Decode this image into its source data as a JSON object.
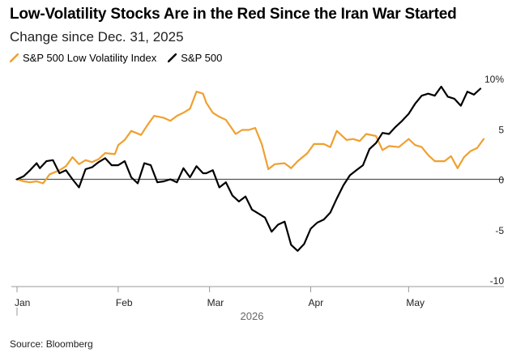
{
  "header": {
    "title": "Low-Volatility Stocks Are in the Red Since the Iran War Started",
    "subtitle": "Change since Dec. 31, 2025"
  },
  "footer": {
    "source": "Source: Bloomberg"
  },
  "colors": {
    "low_vol": "#f0a030",
    "sp500": "#000000",
    "zero_line": "#555555",
    "axis": "#999999"
  },
  "chart_data": {
    "type": "line",
    "title": "Low-Volatility Stocks Are in the Red Since the Iran War Started",
    "subtitle": "Change since Dec. 31, 2025",
    "x_tick_labels": [
      "Jan",
      "Feb",
      "Mar",
      "Apr",
      "May"
    ],
    "x_tick_dates": [
      "2026-01-01",
      "2026-02-01",
      "2026-03-01",
      "2026-04-01",
      "2026-05-01"
    ],
    "x_axis_year_label": "2026",
    "x_range": [
      "2026-01-01",
      "2026-05-24"
    ],
    "y_ticks": [
      10,
      5,
      0,
      -5,
      -10
    ],
    "y_tick_labels": [
      "10%",
      "5",
      "0",
      "-5",
      "-10"
    ],
    "ylim": [
      -10,
      10
    ],
    "legend_position": "top-left",
    "grid": false,
    "series": [
      {
        "name": "S&P 500 Low Volatility Index",
        "color": "#f0a030",
        "points": [
          [
            "2026-01-01",
            0.0
          ],
          [
            "2026-01-03",
            -0.2
          ],
          [
            "2026-01-05",
            -0.3
          ],
          [
            "2026-01-07",
            -0.2
          ],
          [
            "2026-01-09",
            -0.4
          ],
          [
            "2026-01-11",
            0.5
          ],
          [
            "2026-01-14",
            0.9
          ],
          [
            "2026-01-16",
            1.3
          ],
          [
            "2026-01-18",
            2.2
          ],
          [
            "2026-01-20",
            1.5
          ],
          [
            "2026-01-22",
            1.9
          ],
          [
            "2026-01-24",
            1.7
          ],
          [
            "2026-01-26",
            2.0
          ],
          [
            "2026-01-28",
            2.6
          ],
          [
            "2026-01-31",
            2.5
          ],
          [
            "2026-02-01",
            3.4
          ],
          [
            "2026-02-03",
            3.9
          ],
          [
            "2026-02-05",
            4.8
          ],
          [
            "2026-02-08",
            4.4
          ],
          [
            "2026-02-10",
            5.4
          ],
          [
            "2026-02-12",
            6.3
          ],
          [
            "2026-02-15",
            6.1
          ],
          [
            "2026-02-17",
            5.8
          ],
          [
            "2026-02-19",
            6.3
          ],
          [
            "2026-02-21",
            6.6
          ],
          [
            "2026-02-23",
            7.0
          ],
          [
            "2026-02-25",
            8.7
          ],
          [
            "2026-02-27",
            8.5
          ],
          [
            "2026-02-28",
            7.6
          ],
          [
            "2026-03-02",
            6.6
          ],
          [
            "2026-03-04",
            6.2
          ],
          [
            "2026-03-06",
            5.9
          ],
          [
            "2026-03-09",
            4.5
          ],
          [
            "2026-03-11",
            4.9
          ],
          [
            "2026-03-13",
            4.9
          ],
          [
            "2026-03-15",
            5.1
          ],
          [
            "2026-03-17",
            3.5
          ],
          [
            "2026-03-19",
            1.0
          ],
          [
            "2026-03-21",
            1.5
          ],
          [
            "2026-03-24",
            1.6
          ],
          [
            "2026-03-26",
            1.1
          ],
          [
            "2026-03-28",
            1.8
          ],
          [
            "2026-03-31",
            2.6
          ],
          [
            "2026-04-02",
            3.5
          ],
          [
            "2026-04-05",
            3.5
          ],
          [
            "2026-04-07",
            3.2
          ],
          [
            "2026-04-09",
            4.8
          ],
          [
            "2026-04-12",
            3.9
          ],
          [
            "2026-04-14",
            4.0
          ],
          [
            "2026-04-16",
            3.8
          ],
          [
            "2026-04-18",
            4.5
          ],
          [
            "2026-04-21",
            4.3
          ],
          [
            "2026-04-23",
            2.9
          ],
          [
            "2026-04-25",
            3.3
          ],
          [
            "2026-04-28",
            3.2
          ],
          [
            "2026-05-01",
            4.0
          ],
          [
            "2026-05-03",
            3.4
          ],
          [
            "2026-05-05",
            3.2
          ],
          [
            "2026-05-07",
            2.4
          ],
          [
            "2026-05-09",
            1.8
          ],
          [
            "2026-05-12",
            1.8
          ],
          [
            "2026-05-14",
            2.3
          ],
          [
            "2026-05-16",
            1.1
          ],
          [
            "2026-05-18",
            2.2
          ],
          [
            "2026-05-20",
            2.8
          ],
          [
            "2026-05-22",
            3.1
          ],
          [
            "2026-05-24",
            4.0
          ]
        ]
      },
      {
        "name": "S&P 500",
        "color": "#000000",
        "points": [
          [
            "2026-01-01",
            0.0
          ],
          [
            "2026-01-03",
            0.3
          ],
          [
            "2026-01-05",
            0.9
          ],
          [
            "2026-01-07",
            1.6
          ],
          [
            "2026-01-08",
            1.1
          ],
          [
            "2026-01-10",
            1.8
          ],
          [
            "2026-01-12",
            1.9
          ],
          [
            "2026-01-14",
            0.6
          ],
          [
            "2026-01-16",
            0.9
          ],
          [
            "2026-01-18",
            0.0
          ],
          [
            "2026-01-20",
            -0.8
          ],
          [
            "2026-01-22",
            1.0
          ],
          [
            "2026-01-24",
            1.2
          ],
          [
            "2026-01-26",
            1.7
          ],
          [
            "2026-01-28",
            2.1
          ],
          [
            "2026-01-30",
            1.4
          ],
          [
            "2026-02-01",
            1.4
          ],
          [
            "2026-02-03",
            1.8
          ],
          [
            "2026-02-05",
            0.2
          ],
          [
            "2026-02-07",
            -0.4
          ],
          [
            "2026-02-09",
            1.6
          ],
          [
            "2026-02-11",
            1.4
          ],
          [
            "2026-02-13",
            -0.3
          ],
          [
            "2026-02-15",
            -0.2
          ],
          [
            "2026-02-17",
            0.0
          ],
          [
            "2026-02-19",
            -0.3
          ],
          [
            "2026-02-21",
            1.1
          ],
          [
            "2026-02-23",
            0.2
          ],
          [
            "2026-02-25",
            1.3
          ],
          [
            "2026-02-27",
            0.6
          ],
          [
            "2026-02-28",
            0.6
          ],
          [
            "2026-03-02",
            0.9
          ],
          [
            "2026-03-04",
            -0.8
          ],
          [
            "2026-03-06",
            -0.3
          ],
          [
            "2026-03-08",
            -1.6
          ],
          [
            "2026-03-10",
            -2.2
          ],
          [
            "2026-03-12",
            -1.7
          ],
          [
            "2026-03-14",
            -3.0
          ],
          [
            "2026-03-16",
            -3.4
          ],
          [
            "2026-03-18",
            -3.8
          ],
          [
            "2026-03-20",
            -5.2
          ],
          [
            "2026-03-22",
            -4.5
          ],
          [
            "2026-03-24",
            -4.2
          ],
          [
            "2026-03-26",
            -6.5
          ],
          [
            "2026-03-28",
            -7.1
          ],
          [
            "2026-03-30",
            -6.4
          ],
          [
            "2026-04-01",
            -4.9
          ],
          [
            "2026-04-03",
            -4.3
          ],
          [
            "2026-04-05",
            -4.0
          ],
          [
            "2026-04-07",
            -3.3
          ],
          [
            "2026-04-09",
            -1.9
          ],
          [
            "2026-04-11",
            -0.6
          ],
          [
            "2026-04-13",
            0.4
          ],
          [
            "2026-04-15",
            0.9
          ],
          [
            "2026-04-17",
            1.4
          ],
          [
            "2026-04-19",
            3.0
          ],
          [
            "2026-04-21",
            3.6
          ],
          [
            "2026-04-23",
            4.6
          ],
          [
            "2026-04-25",
            4.5
          ],
          [
            "2026-04-27",
            5.2
          ],
          [
            "2026-04-29",
            5.8
          ],
          [
            "2026-05-01",
            6.5
          ],
          [
            "2026-05-03",
            7.5
          ],
          [
            "2026-05-05",
            8.3
          ],
          [
            "2026-05-07",
            8.5
          ],
          [
            "2026-05-09",
            8.3
          ],
          [
            "2026-05-11",
            9.2
          ],
          [
            "2026-05-13",
            8.2
          ],
          [
            "2026-05-15",
            8.0
          ],
          [
            "2026-05-17",
            7.3
          ],
          [
            "2026-05-19",
            8.7
          ],
          [
            "2026-05-21",
            8.4
          ],
          [
            "2026-05-23",
            9.0
          ]
        ]
      }
    ]
  }
}
